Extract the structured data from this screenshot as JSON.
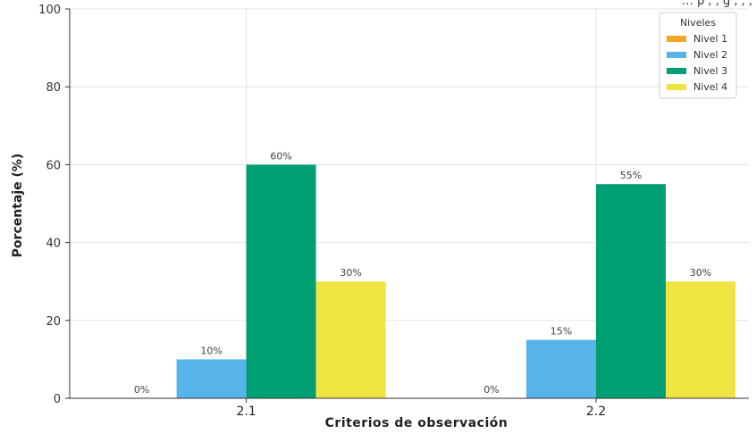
{
  "top_note": "… p ,  , g ,   , ,",
  "chart_data": {
    "type": "bar",
    "categories": [
      "2.1",
      "2.2"
    ],
    "series": [
      {
        "name": "Nivel 1",
        "values": [
          0,
          0
        ],
        "labels": [
          "0%",
          "0%"
        ],
        "color": "#f5a623"
      },
      {
        "name": "Nivel 2",
        "values": [
          10,
          15
        ],
        "labels": [
          "10%",
          "15%"
        ],
        "color": "#56b4e9"
      },
      {
        "name": "Nivel 3",
        "values": [
          60,
          55
        ],
        "labels": [
          "60%",
          "55%"
        ],
        "color": "#009e73"
      },
      {
        "name": "Nivel 4",
        "values": [
          30,
          30
        ],
        "labels": [
          "30%",
          "30%"
        ],
        "color": "#f0e442"
      }
    ],
    "title": "",
    "xlabel": "Criterios de observación",
    "ylabel": "Porcentaje (%)",
    "ylim": [
      0,
      100
    ],
    "yticks": [
      0,
      20,
      40,
      60,
      80,
      100
    ],
    "grid": true,
    "legend": {
      "title": "Niveles",
      "position": "top-right"
    }
  }
}
